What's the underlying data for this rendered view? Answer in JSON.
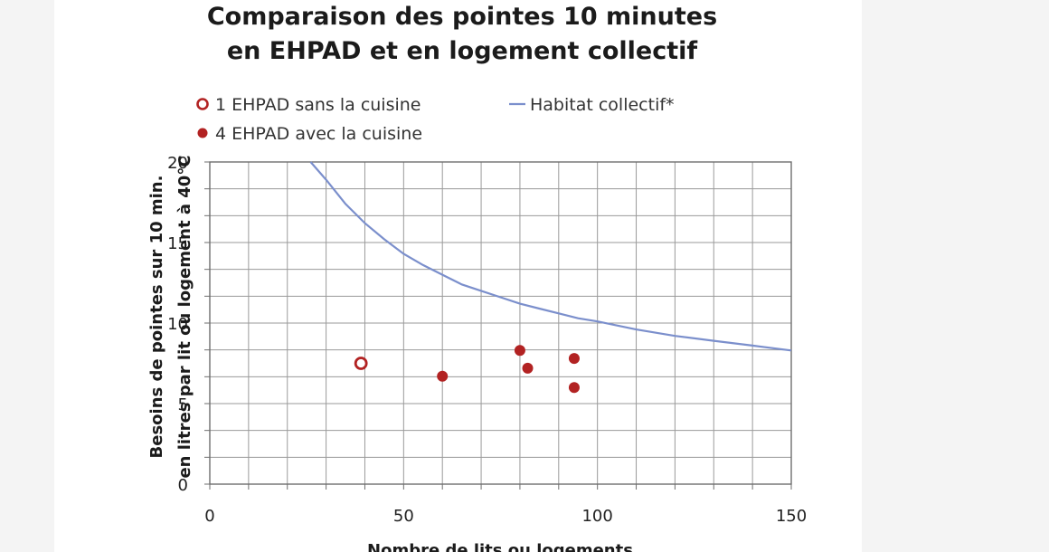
{
  "chart_data": {
    "type": "scatter",
    "title_lines": [
      "Comparaison des pointes 10 minutes",
      "en EHPAD et en logement collectif"
    ],
    "xlabel": "Nombre de lits ou logements",
    "ylabel_lines": [
      "Besoins de pointes sur 10 min.",
      "en litres par lit ou logement à 40°C"
    ],
    "xlim": [
      0,
      150
    ],
    "ylim": [
      0,
      20
    ],
    "x_ticks": [
      0,
      50,
      100,
      150
    ],
    "y_ticks": [
      0,
      5,
      10,
      15,
      20
    ],
    "x_minor_step": 10,
    "y_minor_step": 1.6667,
    "grid": true,
    "legend_position": "top-left",
    "series": [
      {
        "name": "1 EHPAD sans la cuisine",
        "marker": "hollow-circle",
        "color": "#b22222",
        "points": [
          [
            39,
            7.5
          ]
        ]
      },
      {
        "name": "4 EHPAD avec la cuisine",
        "marker": "filled-circle",
        "color": "#b22222",
        "points": [
          [
            60,
            6.7
          ],
          [
            80,
            8.3
          ],
          [
            82,
            7.2
          ],
          [
            94,
            7.8
          ],
          [
            94,
            6.0
          ]
        ]
      },
      {
        "name": "Habitat collectif*",
        "marker": "line",
        "color": "#7b8fcc",
        "points": [
          [
            26,
            20.0
          ],
          [
            30,
            18.9
          ],
          [
            35,
            17.4
          ],
          [
            40,
            16.2
          ],
          [
            45,
            15.2
          ],
          [
            50,
            14.3
          ],
          [
            55,
            13.6
          ],
          [
            60,
            13.0
          ],
          [
            65,
            12.4
          ],
          [
            70,
            12.0
          ],
          [
            75,
            11.6
          ],
          [
            80,
            11.2
          ],
          [
            85,
            10.9
          ],
          [
            90,
            10.6
          ],
          [
            95,
            10.3
          ],
          [
            100,
            10.1
          ],
          [
            110,
            9.6
          ],
          [
            120,
            9.2
          ],
          [
            130,
            8.9
          ],
          [
            140,
            8.6
          ],
          [
            150,
            8.3
          ]
        ]
      }
    ]
  }
}
